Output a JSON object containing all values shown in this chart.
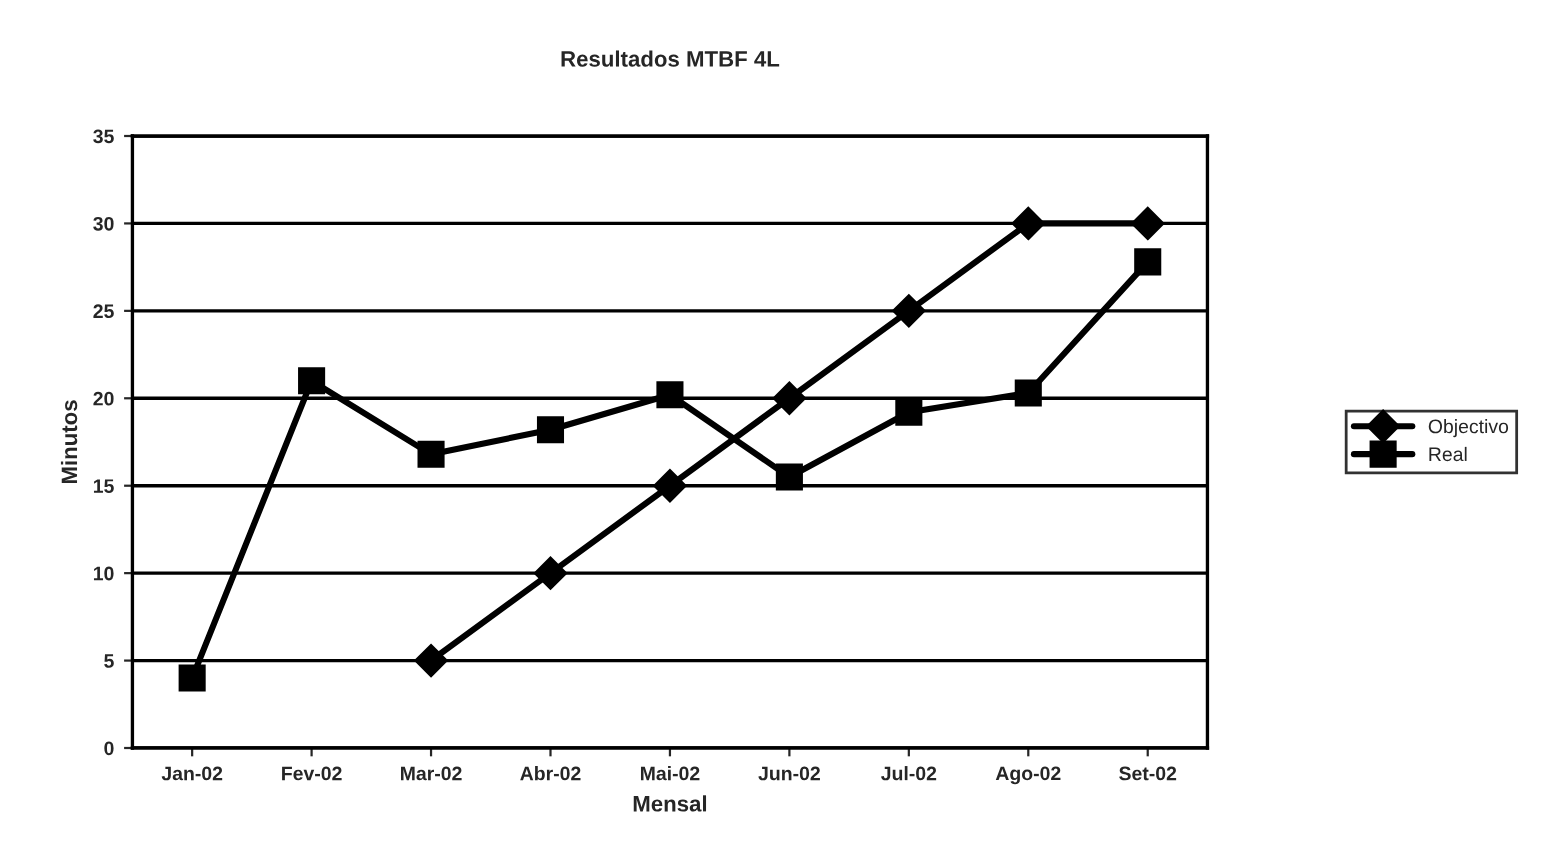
{
  "chart_data": {
    "type": "line",
    "title": "Resultados MTBF 4L",
    "xlabel": "Mensal",
    "ylabel": "Minutos",
    "categories": [
      "Jan-02",
      "Fev-02",
      "Mar-02",
      "Abr-02",
      "Mai-02",
      "Jun-02",
      "Jul-02",
      "Ago-02",
      "Set-02"
    ],
    "series": [
      {
        "name": "Objectivo",
        "color": "#000000",
        "marker": "diamond",
        "values": [
          null,
          null,
          5,
          10,
          15,
          20,
          25,
          30,
          30
        ]
      },
      {
        "name": "Real",
        "color": "#000000",
        "marker": "square",
        "values": [
          4,
          21,
          16.8,
          18.2,
          20.2,
          15.5,
          19.2,
          20.3,
          27.8
        ]
      }
    ],
    "ylim": [
      0,
      35
    ],
    "yticks": [
      0,
      5,
      10,
      15,
      20,
      25,
      30,
      35
    ],
    "grid": "y",
    "legend": "right",
    "line_style": "solid"
  }
}
